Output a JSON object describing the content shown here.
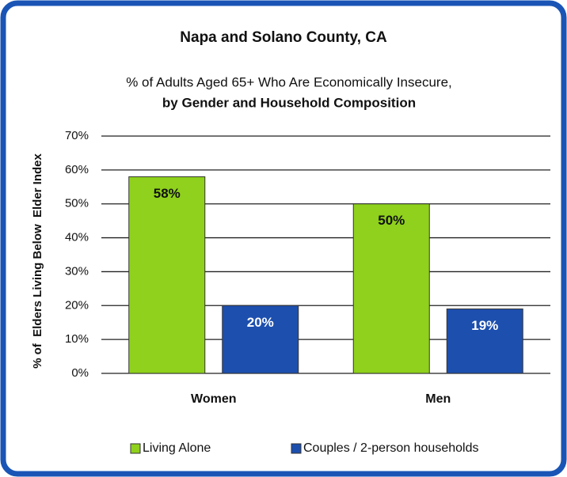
{
  "chart_data": {
    "type": "bar",
    "title": "Napa and Solano County, CA",
    "subtitle": [
      "% of Adults Aged 65+ Who Are Economically Insecure,",
      "by Gender and Household Composition"
    ],
    "y_label": "% of  Elders Living Below  Elder Index",
    "categories": [
      "Women",
      "Men"
    ],
    "series": [
      {
        "name": "Living Alone",
        "color": "#8fd11c",
        "values": [
          58,
          50
        ],
        "value_labels": [
          "58%",
          "50%"
        ]
      },
      {
        "name": "Couples / 2-person households",
        "color": "#1d4fae",
        "values": [
          20,
          19
        ],
        "value_labels": [
          "20%",
          "19%"
        ]
      }
    ],
    "ylim": [
      0,
      70
    ],
    "yticks": [
      {
        "value": 0,
        "label": "0%"
      },
      {
        "value": 10,
        "label": "10%"
      },
      {
        "value": 20,
        "label": "20%"
      },
      {
        "value": 30,
        "label": "30%"
      },
      {
        "value": 40,
        "label": "40%"
      },
      {
        "value": 50,
        "label": "50%"
      },
      {
        "value": 60,
        "label": "60%"
      },
      {
        "value": 70,
        "label": "70%"
      }
    ],
    "grid": true,
    "legend": "bottom"
  }
}
